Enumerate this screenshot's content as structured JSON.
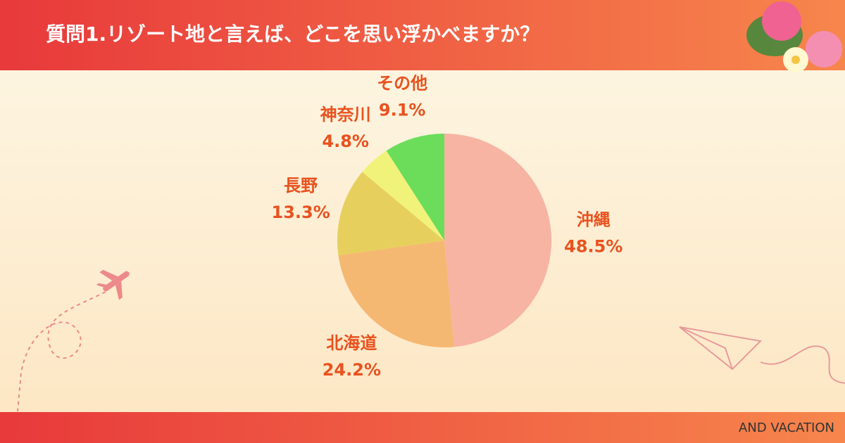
{
  "chart_data": {
    "type": "pie",
    "title": "質問1.リゾート地と言えば、どこを思い浮かべますか？",
    "categories": [
      "沖縄",
      "北海道",
      "長野",
      "神奈川",
      "その他"
    ],
    "values": [
      48.5,
      24.2,
      13.3,
      4.8,
      9.1
    ],
    "value_labels": [
      "48.5%",
      "24.2%",
      "13.3%",
      "4.8%",
      "9.1%"
    ],
    "colors": [
      "#f7b4a2",
      "#f5b872",
      "#e7cf5e",
      "#f1f27a",
      "#6bdd5a"
    ]
  },
  "footer": {
    "brand": "AND VACATION"
  }
}
